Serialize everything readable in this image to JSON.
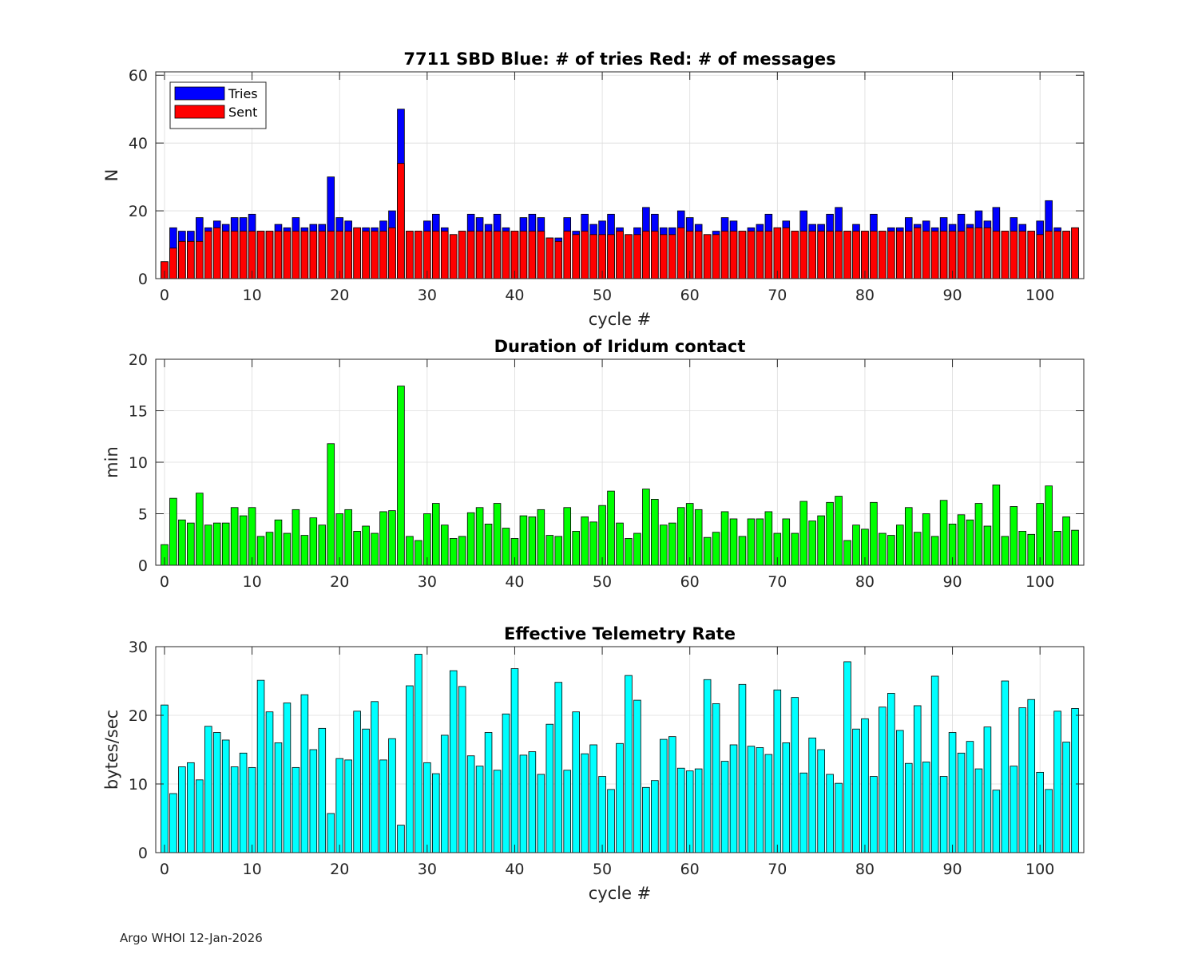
{
  "chart_data": [
    {
      "type": "bar",
      "stacked": "overlay",
      "title": "7711 SBD  Blue: # of tries   Red: # of messages",
      "xlabel": "cycle #",
      "ylabel": "N",
      "xlim": [
        -1,
        105
      ],
      "ylim": [
        0,
        61
      ],
      "xticks": [
        0,
        10,
        20,
        30,
        40,
        50,
        60,
        70,
        80,
        90,
        100
      ],
      "yticks": [
        0,
        20,
        40,
        60
      ],
      "grid": true,
      "legend": "top-left",
      "series": [
        {
          "name": "Tries",
          "color": "#0000ff",
          "values": [
            5,
            15,
            14,
            14,
            18,
            15,
            17,
            16,
            18,
            18,
            19,
            14,
            14,
            16,
            15,
            18,
            15,
            16,
            16,
            30,
            18,
            17,
            15,
            15,
            15,
            17,
            20,
            50,
            14,
            14,
            17,
            19,
            15,
            13,
            14,
            19,
            18,
            16,
            19,
            15,
            14,
            18,
            19,
            18,
            12,
            12,
            18,
            14,
            19,
            16,
            17,
            19,
            15,
            13,
            15,
            21,
            19,
            15,
            15,
            20,
            18,
            16,
            13,
            14,
            18,
            17,
            14,
            15,
            16,
            19,
            15,
            17,
            14,
            20,
            16,
            16,
            19,
            21,
            14,
            16,
            14,
            19,
            14,
            15,
            15,
            18,
            16,
            17,
            15,
            18,
            16,
            19,
            16,
            20,
            17,
            21,
            14,
            18,
            16,
            14,
            17,
            23,
            15,
            14,
            15
          ]
        },
        {
          "name": "Sent",
          "color": "#ff0000",
          "values": [
            5,
            9,
            11,
            11,
            11,
            14,
            15,
            14,
            14,
            14,
            14,
            14,
            14,
            14,
            14,
            14,
            14,
            14,
            14,
            14,
            14,
            14,
            15,
            14,
            14,
            14,
            15,
            34,
            14,
            14,
            14,
            14,
            14,
            13,
            14,
            14,
            14,
            14,
            14,
            14,
            14,
            14,
            14,
            14,
            12,
            11,
            14,
            13,
            14,
            13,
            13,
            13,
            14,
            13,
            13,
            14,
            14,
            13,
            13,
            15,
            14,
            14,
            13,
            13,
            14,
            14,
            14,
            14,
            14,
            14,
            15,
            15,
            14,
            14,
            14,
            14,
            14,
            14,
            14,
            14,
            14,
            14,
            14,
            14,
            14,
            14,
            15,
            14,
            14,
            14,
            14,
            14,
            15,
            15,
            15,
            14,
            14,
            14,
            14,
            14,
            13,
            14,
            14,
            14,
            15
          ]
        }
      ]
    },
    {
      "type": "bar",
      "title": "Duration of Iridum contact",
      "xlabel": "",
      "ylabel": "min",
      "xlim": [
        -1,
        105
      ],
      "ylim": [
        0,
        20
      ],
      "xticks": [
        0,
        10,
        20,
        30,
        40,
        50,
        60,
        70,
        80,
        90,
        100
      ],
      "yticks": [
        0,
        5,
        10,
        15,
        20
      ],
      "grid": true,
      "series": [
        {
          "name": "",
          "color": "#00ff00",
          "values": [
            2.0,
            6.5,
            4.4,
            4.1,
            7.0,
            3.9,
            4.1,
            4.1,
            5.6,
            4.8,
            5.6,
            2.8,
            3.2,
            4.4,
            3.1,
            5.4,
            2.9,
            4.6,
            3.9,
            11.8,
            5.0,
            5.4,
            3.3,
            3.8,
            3.1,
            5.2,
            5.3,
            17.4,
            2.8,
            2.4,
            5.0,
            6.0,
            3.9,
            2.6,
            2.8,
            5.1,
            5.6,
            4.0,
            6.0,
            3.6,
            2.6,
            4.8,
            4.7,
            5.4,
            2.9,
            2.8,
            5.6,
            3.3,
            4.7,
            4.2,
            5.8,
            7.2,
            4.1,
            2.6,
            3.1,
            7.4,
            6.4,
            3.9,
            4.1,
            5.6,
            6.0,
            5.4,
            2.7,
            3.2,
            5.2,
            4.5,
            2.8,
            4.5,
            4.5,
            5.2,
            3.1,
            4.5,
            3.1,
            6.2,
            4.3,
            4.8,
            6.1,
            6.7,
            2.4,
            3.9,
            3.5,
            6.1,
            3.1,
            2.9,
            3.9,
            5.6,
            3.2,
            5.0,
            2.8,
            6.3,
            4.0,
            4.9,
            4.4,
            6.0,
            3.8,
            7.8,
            2.8,
            5.7,
            3.3,
            3.0,
            6.0,
            7.7,
            3.3,
            4.7,
            3.4
          ]
        }
      ]
    },
    {
      "type": "bar",
      "title": "Effective Telemetry Rate",
      "xlabel": "cycle #",
      "ylabel": "bytes/sec",
      "xlim": [
        -1,
        105
      ],
      "ylim": [
        0,
        30
      ],
      "xticks": [
        0,
        10,
        20,
        30,
        40,
        50,
        60,
        70,
        80,
        90,
        100
      ],
      "yticks": [
        0,
        10,
        20,
        30
      ],
      "grid": true,
      "series": [
        {
          "name": "",
          "color": "#00ffff",
          "values": [
            21.5,
            8.6,
            12.5,
            13.1,
            10.6,
            18.4,
            17.5,
            16.4,
            12.5,
            14.5,
            12.4,
            25.1,
            20.5,
            16.0,
            21.8,
            12.4,
            23.0,
            15.0,
            18.1,
            5.7,
            13.7,
            13.5,
            20.6,
            18.0,
            22.0,
            13.5,
            16.6,
            4.0,
            24.3,
            28.9,
            13.1,
            11.5,
            17.1,
            26.5,
            24.2,
            14.1,
            12.6,
            17.5,
            12.0,
            20.2,
            26.8,
            14.2,
            14.7,
            11.4,
            18.7,
            24.8,
            12.0,
            20.5,
            14.4,
            15.7,
            11.1,
            9.2,
            15.9,
            25.8,
            22.2,
            9.5,
            10.5,
            16.5,
            16.9,
            12.3,
            11.9,
            12.2,
            25.2,
            21.7,
            13.3,
            15.7,
            24.5,
            15.5,
            15.3,
            14.3,
            23.7,
            16.0,
            22.6,
            11.6,
            16.7,
            15.0,
            11.4,
            10.1,
            27.8,
            18.0,
            19.5,
            11.1,
            21.2,
            23.2,
            17.8,
            13.0,
            21.4,
            13.2,
            25.7,
            11.1,
            17.5,
            14.5,
            16.2,
            12.2,
            18.3,
            9.1,
            25.0,
            12.6,
            21.1,
            22.3,
            11.7,
            9.2,
            20.6,
            16.1,
            21.0
          ]
        }
      ]
    }
  ],
  "footer": "Argo WHOI 12-Jan-2026"
}
